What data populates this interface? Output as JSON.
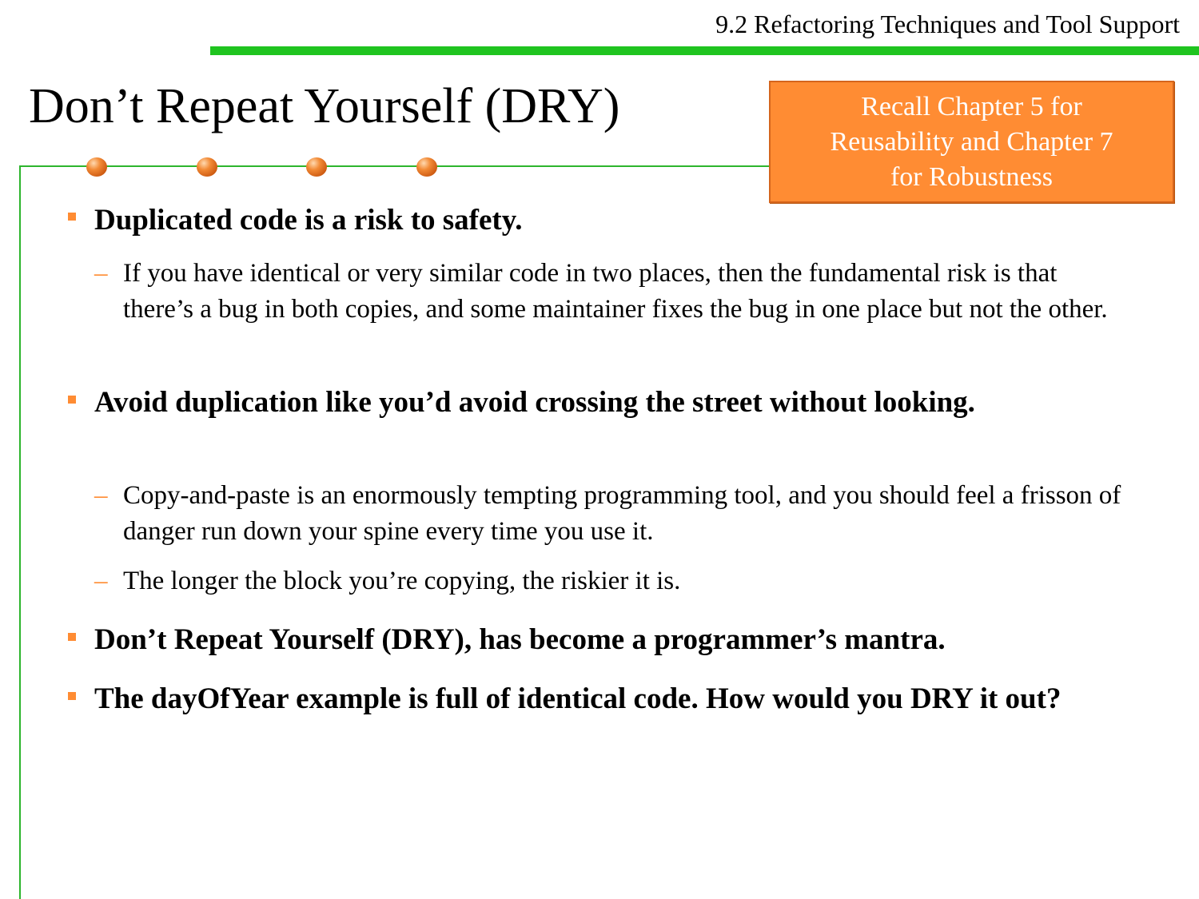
{
  "header": {
    "section": "9.2 Refactoring Techniques and Tool Support"
  },
  "title": "Don’t Repeat Yourself (DRY)",
  "callout": "Recall Chapter 5 for\nReusability and Chapter 7\nfor Robustness",
  "bullets": [
    {
      "text": "Duplicated code is a risk to safety.",
      "subs": [
        "If you have identical or very similar code in two places, then the fundamental risk is that there’s a bug in both copies, and some maintainer fixes the bug in one place but not the other."
      ]
    },
    {
      "text": "Avoid duplication like you’d avoid crossing the street without looking.",
      "subs": [
        "Copy-and-paste is an enormously tempting programming tool, and you should feel a frisson of danger run down your spine every time you use it.",
        "The longer the block you’re copying, the riskier it is."
      ]
    },
    {
      "text": "Don’t Repeat Yourself (DRY), has become a programmer’s mantra.",
      "subs": []
    },
    {
      "text": "The dayOfYear example is full of identical code. How would you DRY it out?",
      "subs": []
    }
  ],
  "markers": {
    "sub_dash": "–"
  },
  "colors": {
    "accent_green": "#1fc41f",
    "accent_orange": "#ff8c33",
    "callout_text": "#ffffff"
  }
}
